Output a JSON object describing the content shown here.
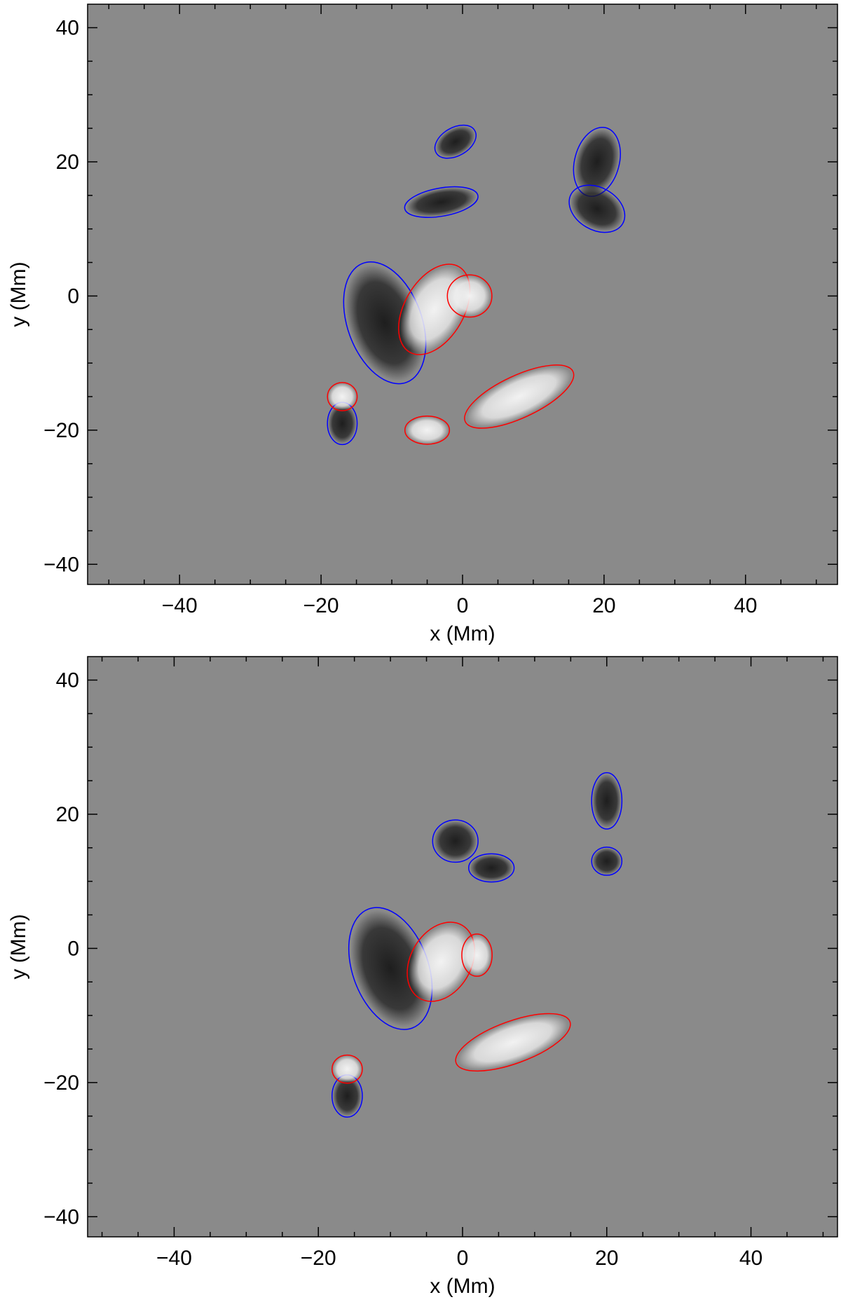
{
  "chart_data": [
    {
      "type": "heatmap",
      "title": "",
      "xlabel": "x (Mm)",
      "ylabel": "y (Mm)",
      "xlim": [
        -53,
        53
      ],
      "ylim": [
        -43,
        43.5
      ],
      "xticks": [
        -40,
        -20,
        0,
        20,
        40
      ],
      "yticks": [
        -40,
        -20,
        0,
        20,
        40
      ],
      "colormap": "grayscale (dark = negative, light = positive)",
      "contours": [
        {
          "color": "#0000ff",
          "polarity": "negative"
        },
        {
          "color": "#ff0000",
          "polarity": "positive"
        }
      ],
      "features": [
        {
          "polarity": "negative",
          "x": -11,
          "y": -4,
          "rx": 5,
          "ry": 9,
          "rot": -20
        },
        {
          "polarity": "negative",
          "x": -17,
          "y": -19,
          "rx": 2,
          "ry": 3,
          "rot": 0
        },
        {
          "polarity": "negative",
          "x": 19,
          "y": 20,
          "rx": 3,
          "ry": 5,
          "rot": 15
        },
        {
          "polarity": "negative",
          "x": 19,
          "y": 13,
          "rx": 4,
          "ry": 3,
          "rot": 30
        },
        {
          "polarity": "negative",
          "x": -1,
          "y": 23,
          "rx": 3,
          "ry": 2,
          "rot": -30
        },
        {
          "polarity": "negative",
          "x": -3,
          "y": 14,
          "rx": 5,
          "ry": 2,
          "rot": -10
        },
        {
          "polarity": "positive",
          "x": -4,
          "y": -2,
          "rx": 4,
          "ry": 7,
          "rot": 30
        },
        {
          "polarity": "positive",
          "x": 1,
          "y": 0,
          "rx": 3,
          "ry": 3,
          "rot": 0
        },
        {
          "polarity": "positive",
          "x": 8,
          "y": -15,
          "rx": 8,
          "ry": 3,
          "rot": -25
        },
        {
          "polarity": "positive",
          "x": -17,
          "y": -15,
          "rx": 2,
          "ry": 2,
          "rot": 0
        },
        {
          "polarity": "positive",
          "x": -5,
          "y": -20,
          "rx": 3,
          "ry": 2,
          "rot": 0
        }
      ]
    },
    {
      "type": "heatmap",
      "title": "",
      "xlabel": "x (Mm)",
      "ylabel": "y (Mm)",
      "xlim": [
        -52,
        52
      ],
      "ylim": [
        -43,
        43.5
      ],
      "xticks": [
        -40,
        -20,
        0,
        20,
        40
      ],
      "yticks": [
        -40,
        -20,
        0,
        20,
        40
      ],
      "colormap": "grayscale (dark = negative, light = positive)",
      "contours": [
        {
          "color": "#0000ff",
          "polarity": "negative"
        },
        {
          "color": "#ff0000",
          "polarity": "positive"
        }
      ],
      "features": [
        {
          "polarity": "negative",
          "x": -10,
          "y": -3,
          "rx": 5,
          "ry": 9,
          "rot": -20
        },
        {
          "polarity": "negative",
          "x": -16,
          "y": -22,
          "rx": 2,
          "ry": 3,
          "rot": 0
        },
        {
          "polarity": "negative",
          "x": 20,
          "y": 22,
          "rx": 2,
          "ry": 4,
          "rot": 0
        },
        {
          "polarity": "negative",
          "x": 20,
          "y": 13,
          "rx": 2,
          "ry": 2,
          "rot": 0
        },
        {
          "polarity": "negative",
          "x": -1,
          "y": 16,
          "rx": 3,
          "ry": 3,
          "rot": 0
        },
        {
          "polarity": "negative",
          "x": 4,
          "y": 12,
          "rx": 3,
          "ry": 2,
          "rot": 0
        },
        {
          "polarity": "positive",
          "x": -3,
          "y": -2,
          "rx": 4,
          "ry": 6,
          "rot": 30
        },
        {
          "polarity": "positive",
          "x": 2,
          "y": -1,
          "rx": 2,
          "ry": 3,
          "rot": 0
        },
        {
          "polarity": "positive",
          "x": 7,
          "y": -14,
          "rx": 8,
          "ry": 3,
          "rot": -20
        },
        {
          "polarity": "positive",
          "x": -16,
          "y": -18,
          "rx": 2,
          "ry": 2,
          "rot": 0
        }
      ]
    }
  ],
  "colors": {
    "background": "#8a8a8a",
    "negative_dark": "#1e1e1e",
    "positive_light": "#f2f2f2",
    "negative_contour": "#0000ff",
    "positive_contour": "#ff0000"
  }
}
